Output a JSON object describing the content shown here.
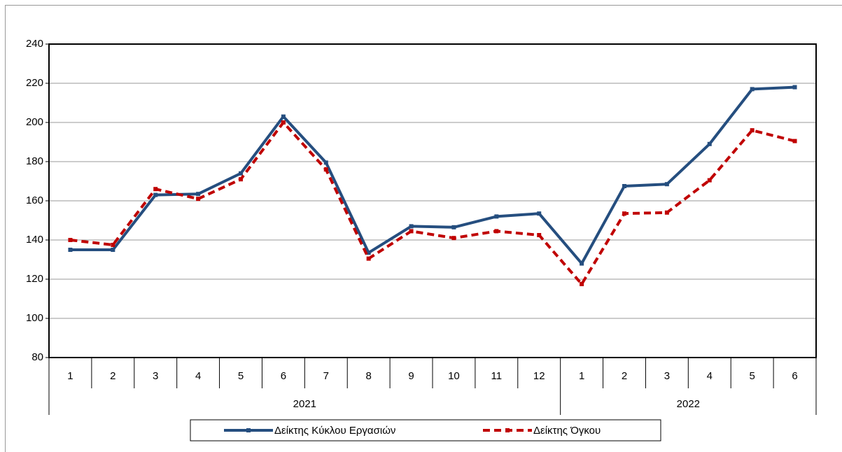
{
  "chart_data": {
    "type": "line",
    "categories": [
      "1",
      "2",
      "3",
      "4",
      "5",
      "6",
      "7",
      "8",
      "9",
      "10",
      "11",
      "12",
      "1",
      "2",
      "3",
      "4",
      "5",
      "6"
    ],
    "years": [
      "2021",
      "2022"
    ],
    "series": [
      {
        "name": "Δείκτης Κύκλου Εργασιών",
        "color": "#254e7f",
        "dashed": false,
        "values": [
          135,
          135,
          163,
          163.5,
          174,
          203,
          179.5,
          133.5,
          147,
          146.5,
          152,
          153.5,
          128,
          167.5,
          168.5,
          189,
          217,
          218
        ]
      },
      {
        "name": "Δείκτης Όγκου",
        "color": "#c00000",
        "dashed": true,
        "values": [
          140,
          137.5,
          166,
          161,
          171,
          200,
          176,
          130.5,
          144.5,
          141,
          144.5,
          142.5,
          117.5,
          153.5,
          154,
          170.5,
          196,
          190.5
        ]
      }
    ],
    "ylim": [
      80,
      240
    ],
    "yticks": [
      80,
      100,
      120,
      140,
      160,
      180,
      200,
      220,
      240
    ],
    "grid": true
  }
}
